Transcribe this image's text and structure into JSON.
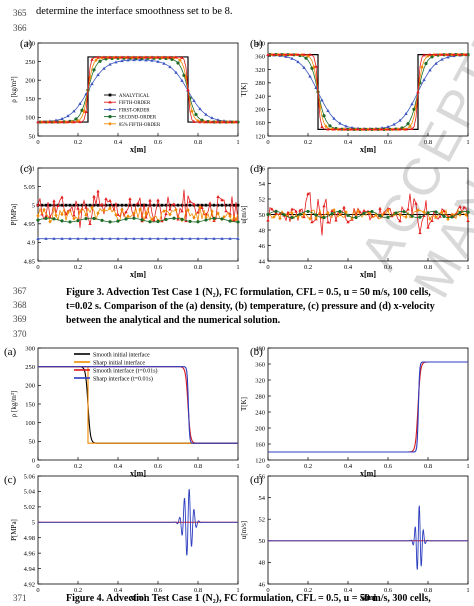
{
  "header_line": {
    "num": "365",
    "text": "determine the interface smoothness set to be 8."
  },
  "line_numbers": {
    "l366": "366",
    "l367": "367",
    "l368": "368",
    "l369": "369",
    "l370": "370",
    "l371": "371"
  },
  "watermark": "ACCEPTED MANUSCRIPT",
  "figure3": {
    "panel_a": {
      "label": "(a)",
      "ylabel": "ρ [kg/m³]",
      "xlabel": "x[m]",
      "xticks": [
        "0",
        "0.2",
        "0.4",
        "0.6",
        "0.8",
        "1"
      ],
      "yticks": [
        "50",
        "100",
        "150",
        "200",
        "250",
        "300"
      ]
    },
    "panel_b": {
      "label": "(b)",
      "ylabel": "T[K]",
      "xlabel": "x[m]",
      "xticks": [
        "0",
        "0.2",
        "0.4",
        "0.6",
        "0.8",
        "1"
      ],
      "yticks": [
        "120",
        "160",
        "200",
        "240",
        "280",
        "320",
        "360",
        "400"
      ]
    },
    "panel_c": {
      "label": "(c)",
      "ylabel": "P[MPa]",
      "xlabel": "x[m]",
      "xticks": [
        "0",
        "0.2",
        "0.4",
        "0.6",
        "0.8",
        "1"
      ],
      "yticks": [
        "4.85",
        "4.9",
        "4.95",
        "5",
        "5.05",
        "5.1"
      ]
    },
    "panel_d": {
      "label": "(d)",
      "ylabel": "u[m/s]",
      "xlabel": "x[m]",
      "xticks": [
        "0",
        "0.2",
        "0.4",
        "0.6",
        "0.8",
        "1"
      ],
      "yticks": [
        "44",
        "46",
        "48",
        "50",
        "52",
        "54",
        "56"
      ]
    },
    "legend": [
      "ANALYTICAL",
      "FIFTH-ORDER",
      "FIRST-ORDER",
      "SECOND-ORDER",
      "85% FIFTH-ORDER"
    ],
    "caption_l1": "Figure 3. Advection Test Case 1 (N₂), FC formulation, CFL = 0.5, u = 50 m/s, 100 cells,",
    "caption_l2": "t=0.02 s. Comparison of the (a) density, (b) temperature, (c) pressure and (d) x-velocity",
    "caption_l3": "between the analytical and the numerical solution."
  },
  "figure4": {
    "panel_a": {
      "label": "(a)",
      "ylabel": "ρ [kg/m³]",
      "xlabel": "x[m]",
      "xticks": [
        "0",
        "0.2",
        "0.4",
        "0.6",
        "0.8",
        "1"
      ],
      "yticks": [
        "0",
        "50",
        "100",
        "150",
        "200",
        "250",
        "300"
      ]
    },
    "panel_b": {
      "label": "(b)",
      "ylabel": "T[K]",
      "xlabel": "x[m]",
      "xticks": [
        "0",
        "0.2",
        "0.4",
        "0.6",
        "0.8",
        "1"
      ],
      "yticks": [
        "120",
        "160",
        "200",
        "240",
        "280",
        "320",
        "360",
        "400"
      ]
    },
    "panel_c": {
      "label": "(c)",
      "ylabel": "P[MPa]",
      "xlabel": "x[m]",
      "xticks": [
        "0",
        "0.2",
        "0.4",
        "0.6",
        "0.8",
        "1"
      ],
      "yticks": [
        "4.92",
        "4.94",
        "4.96",
        "4.98",
        "5",
        "5.02",
        "5.04",
        "5.06"
      ]
    },
    "panel_d": {
      "label": "(d)",
      "ylabel": "u[m/s]",
      "xlabel": "x[m]",
      "xticks": [
        "0",
        "0.2",
        "0.4",
        "0.6",
        "0.8",
        "1"
      ],
      "yticks": [
        "46",
        "48",
        "50",
        "52",
        "54",
        "56"
      ]
    },
    "legend": [
      "Smooth initial interface",
      "Sharp  initial  interface",
      "Smooth interface (t=0.01s)",
      "Sharp interface (t=0.01s)"
    ],
    "caption_l1": "Figure 4. Advection Test Case 1 (N₂), FC formulation, CFL = 0.5, u = 50 m/s, 300 cells,"
  },
  "chart_data": [
    {
      "type": "line",
      "title": "",
      "xlabel": "x[m]",
      "ylabel": "ρ [kg/m³]",
      "xlim": [
        0,
        1
      ],
      "ylim": [
        0,
        300
      ],
      "series": [
        {
          "name": "ANALYTICAL",
          "color": "#000000",
          "x": [
            0,
            0.25,
            0.25,
            0.75,
            0.75,
            1
          ],
          "y": [
            45,
            45,
            255,
            255,
            45,
            45
          ]
        },
        {
          "name": "FIFTH-ORDER",
          "color": "#e41a1c",
          "x": [
            0,
            0.22,
            0.25,
            0.28,
            0.72,
            0.75,
            0.78,
            1
          ],
          "y": [
            45,
            50,
            150,
            250,
            250,
            150,
            50,
            45
          ]
        },
        {
          "name": "FIRST-ORDER",
          "color": "#3a55c0",
          "x": [
            0,
            0.1,
            0.25,
            0.4,
            0.6,
            0.75,
            0.9,
            1
          ],
          "y": [
            48,
            70,
            150,
            235,
            235,
            150,
            70,
            48
          ]
        },
        {
          "name": "SECOND-ORDER",
          "color": "#1e6b2a",
          "x": [
            0,
            0.18,
            0.25,
            0.32,
            0.68,
            0.75,
            0.82,
            1
          ],
          "y": [
            45,
            60,
            150,
            245,
            245,
            150,
            60,
            45
          ]
        },
        {
          "name": "85% FIFTH-ORDER",
          "color": "#f08a00",
          "x": [
            0,
            0.2,
            0.25,
            0.3,
            0.7,
            0.75,
            0.8,
            1
          ],
          "y": [
            45,
            55,
            150,
            248,
            248,
            150,
            55,
            45
          ]
        }
      ]
    },
    {
      "type": "line",
      "title": "",
      "xlabel": "x[m]",
      "ylabel": "T[K]",
      "xlim": [
        0,
        1
      ],
      "ylim": [
        120,
        400
      ],
      "series": [
        {
          "name": "ANALYTICAL",
          "color": "#000000",
          "x": [
            0,
            0.25,
            0.25,
            0.75,
            0.75,
            1
          ],
          "y": [
            365,
            365,
            140,
            140,
            365,
            365
          ]
        }
      ]
    },
    {
      "type": "line",
      "title": "",
      "xlabel": "x[m]",
      "ylabel": "P[MPa]",
      "xlim": [
        0,
        1
      ],
      "ylim": [
        4.85,
        5.1
      ],
      "series": [
        {
          "name": "ANALYTICAL",
          "color": "#000000",
          "x": [
            0,
            1
          ],
          "y": [
            5.0,
            5.0
          ]
        },
        {
          "name": "FIRST-ORDER",
          "color": "#3a55c0",
          "x": [
            0,
            1
          ],
          "y": [
            4.91,
            4.91
          ]
        },
        {
          "name": "SECOND-ORDER",
          "color": "#1e6b2a",
          "x": [
            0,
            1
          ],
          "y": [
            4.96,
            4.96
          ]
        }
      ]
    },
    {
      "type": "line",
      "title": "",
      "xlabel": "x[m]",
      "ylabel": "u[m/s]",
      "xlim": [
        0,
        1
      ],
      "ylim": [
        44,
        56
      ],
      "series": [
        {
          "name": "ANALYTICAL",
          "color": "#000000",
          "x": [
            0,
            1
          ],
          "y": [
            50,
            50
          ]
        }
      ]
    },
    {
      "type": "line",
      "title": "",
      "xlabel": "x[m]",
      "ylabel": "ρ [kg/m³]",
      "xlim": [
        0,
        1
      ],
      "ylim": [
        0,
        300
      ],
      "series": [
        {
          "name": "Smooth initial interface",
          "color": "#000000",
          "x": [
            0,
            0.22,
            0.25,
            0.28,
            1
          ],
          "y": [
            250,
            250,
            150,
            45,
            45
          ]
        },
        {
          "name": "Sharp  initial  interface",
          "color": "#f08a00",
          "x": [
            0,
            0.25,
            0.25,
            1
          ],
          "y": [
            250,
            250,
            45,
            45
          ]
        },
        {
          "name": "Smooth interface (t=0.01s)",
          "color": "#d7191c",
          "x": [
            0,
            0.72,
            0.75,
            0.78,
            1
          ],
          "y": [
            250,
            250,
            150,
            45,
            45
          ]
        },
        {
          "name": "Sharp interface (t=0.01s)",
          "color": "#2b3cbf",
          "x": [
            0,
            0.745,
            0.755,
            1
          ],
          "y": [
            250,
            250,
            45,
            45
          ]
        }
      ]
    },
    {
      "type": "line",
      "title": "",
      "xlabel": "x[m]",
      "ylabel": "T[K]",
      "xlim": [
        0,
        1
      ],
      "ylim": [
        120,
        400
      ],
      "series": [
        {
          "name": "Sharp interface (t=0.01s)",
          "color": "#2b3cbf",
          "x": [
            0,
            0.745,
            0.755,
            1
          ],
          "y": [
            140,
            140,
            365,
            365
          ]
        }
      ]
    },
    {
      "type": "line",
      "title": "",
      "xlabel": "x[m]",
      "ylabel": "P[MPa]",
      "xlim": [
        0,
        1
      ],
      "ylim": [
        4.92,
        5.06
      ],
      "series": [
        {
          "name": "Smooth interface (t=0.01s)",
          "color": "#d7191c",
          "x": [
            0,
            1
          ],
          "y": [
            5.0,
            5.0
          ]
        },
        {
          "name": "Sharp interface (t=0.01s)",
          "color": "#2b3cbf",
          "x": [
            0,
            0.68,
            0.75,
            0.82,
            1
          ],
          "y": [
            5.0,
            5.0,
            5.045,
            5.0,
            5.0
          ]
        }
      ]
    },
    {
      "type": "line",
      "title": "",
      "xlabel": "x[m]",
      "ylabel": "u[m/s]",
      "xlim": [
        0,
        1
      ],
      "ylim": [
        46,
        56
      ],
      "series": [
        {
          "name": "Smooth interface (t=0.01s)",
          "color": "#d7191c",
          "x": [
            0,
            1
          ],
          "y": [
            50,
            50
          ]
        },
        {
          "name": "Sharp interface (t=0.01s)",
          "color": "#2b3cbf",
          "x": [
            0,
            0.68,
            0.75,
            0.82,
            1
          ],
          "y": [
            50,
            50,
            53.3,
            50,
            50
          ]
        }
      ]
    }
  ]
}
